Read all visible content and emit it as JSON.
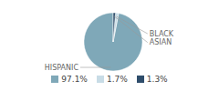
{
  "chart_data": {
    "type": "pie",
    "categories": [
      "HISPANIC",
      "BLACK",
      "ASIAN"
    ],
    "values": [
      97.1,
      1.7,
      1.3
    ],
    "value_labels": [
      "97.1%",
      "1.7%",
      "1.3%"
    ],
    "colors": [
      "#7fa8b8",
      "#c8dce6",
      "#2e4d6b"
    ],
    "legend": "bottom"
  }
}
